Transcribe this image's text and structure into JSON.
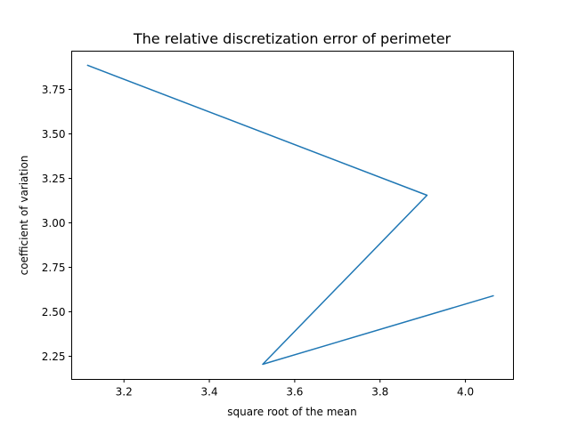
{
  "chart_data": {
    "type": "line",
    "title": "The relative discretization error of perimeter",
    "xlabel": "square root of the mean",
    "ylabel": "coefficient of variation",
    "xlim": [
      3.0775,
      4.1125
    ],
    "ylim": [
      2.12,
      3.965
    ],
    "x_ticks": [
      3.2,
      3.4,
      3.6,
      3.8,
      4.0
    ],
    "x_tick_labels": [
      "3.2",
      "3.4",
      "3.6",
      "3.8",
      "4.0"
    ],
    "y_ticks": [
      2.25,
      2.5,
      2.75,
      3.0,
      3.25,
      3.5,
      3.75
    ],
    "y_tick_labels": [
      "2.25",
      "2.50",
      "2.75",
      "3.00",
      "3.25",
      "3.50",
      "3.75"
    ],
    "grid": false,
    "series": [
      {
        "color": "#1f77b4",
        "x": [
          3.115,
          3.91,
          3.525,
          4.065
        ],
        "y": [
          3.885,
          3.155,
          2.205,
          2.59
        ]
      }
    ]
  }
}
